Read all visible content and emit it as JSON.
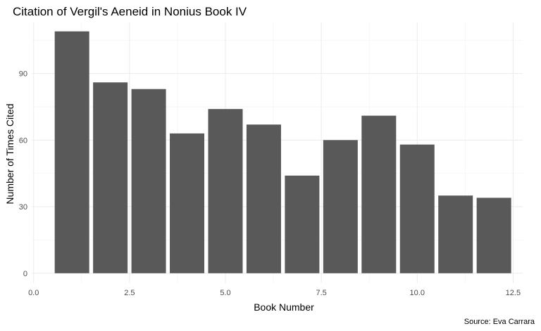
{
  "chart_data": {
    "type": "bar",
    "title": "Citation of Vergil's Aeneid in Nonius Book IV",
    "xlabel": "Book Number",
    "ylabel": "Number of Times Cited",
    "caption": "Source: Eva Carrara",
    "x": [
      1,
      2,
      3,
      4,
      5,
      6,
      7,
      8,
      9,
      10,
      11,
      12
    ],
    "values": [
      109,
      86,
      83,
      63,
      74,
      67,
      44,
      60,
      71,
      58,
      35,
      34
    ],
    "xlim": [
      0,
      12.5
    ],
    "ylim": [
      0,
      109
    ],
    "x_ticks": [
      0,
      2.5,
      5,
      7.5,
      10,
      12.5
    ],
    "x_tick_labels": [
      "0.0",
      "2.5",
      "5.0",
      "7.5",
      "10.0",
      "12.5"
    ],
    "y_ticks": [
      0,
      30,
      60,
      90
    ],
    "y_tick_labels": [
      "0",
      "30",
      "60",
      "90"
    ],
    "bar_color": "#595959",
    "grid": true,
    "legend": "none"
  }
}
